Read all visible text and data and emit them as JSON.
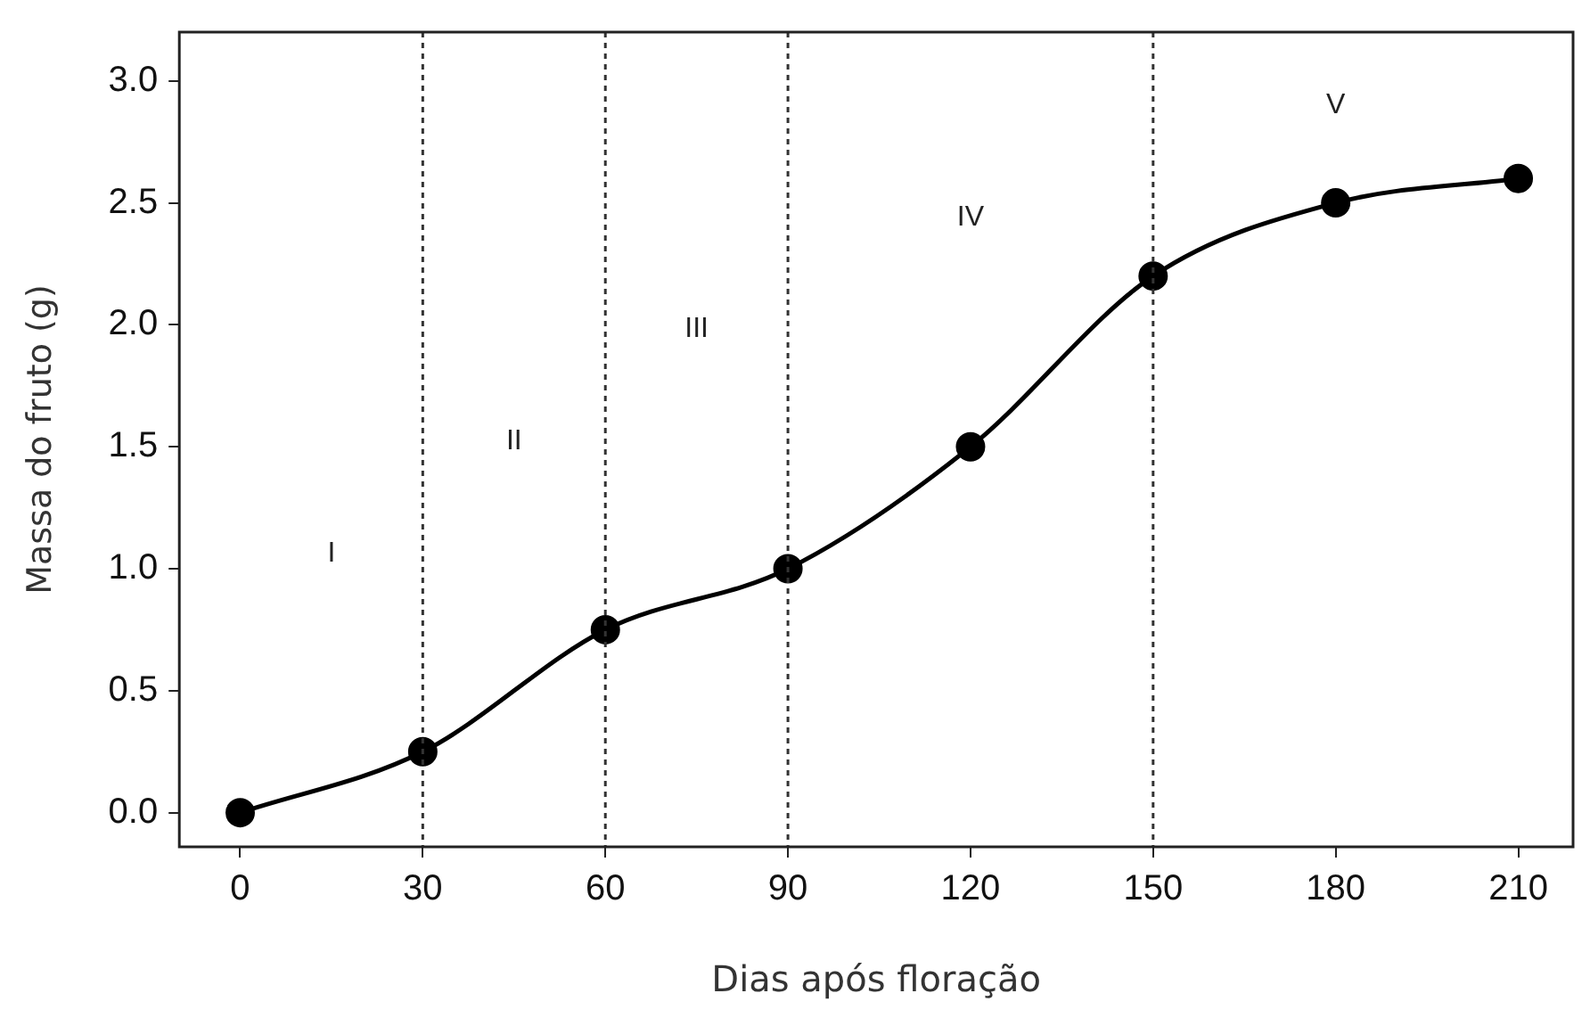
{
  "chart_data": {
    "type": "line",
    "xlabel": "Dias após floração",
    "ylabel": "Massa do fruto (g)",
    "x": [
      0,
      30,
      60,
      90,
      120,
      150,
      180,
      210
    ],
    "series": [
      {
        "color": "#000000",
        "values": [
          0,
          0.25,
          0.75,
          1.0,
          1.5,
          2.2,
          2.5,
          2.6
        ]
      }
    ],
    "xlim": [
      -10,
      219
    ],
    "xticks": [
      0,
      30,
      60,
      90,
      120,
      150,
      180,
      210
    ],
    "ylim": [
      -0.14,
      3.2
    ],
    "yticks": [
      {
        "value": 0,
        "label": "0.0"
      },
      {
        "value": 0.5,
        "label": "0.5"
      },
      {
        "value": 1,
        "label": "1.0"
      },
      {
        "value": 1.5,
        "label": "1.5"
      },
      {
        "value": 2,
        "label": "2.0"
      },
      {
        "value": 2.5,
        "label": "2.5"
      },
      {
        "value": 3,
        "label": "3.0"
      }
    ],
    "ref_lines": [
      {
        "axis": "x",
        "value": 30,
        "line_style": "dotted",
        "color": "#333333"
      },
      {
        "axis": "x",
        "value": 60,
        "line_style": "dotted",
        "color": "#333333"
      },
      {
        "axis": "x",
        "value": 90,
        "line_style": "dotted",
        "color": "#333333"
      },
      {
        "axis": "x",
        "value": 150,
        "line_style": "dotted",
        "color": "#333333"
      }
    ],
    "annotations": [
      "I",
      "II",
      "III",
      "IV",
      "V"
    ],
    "grid": false,
    "legend": false,
    "marker": "circle",
    "line_style": "solid"
  }
}
